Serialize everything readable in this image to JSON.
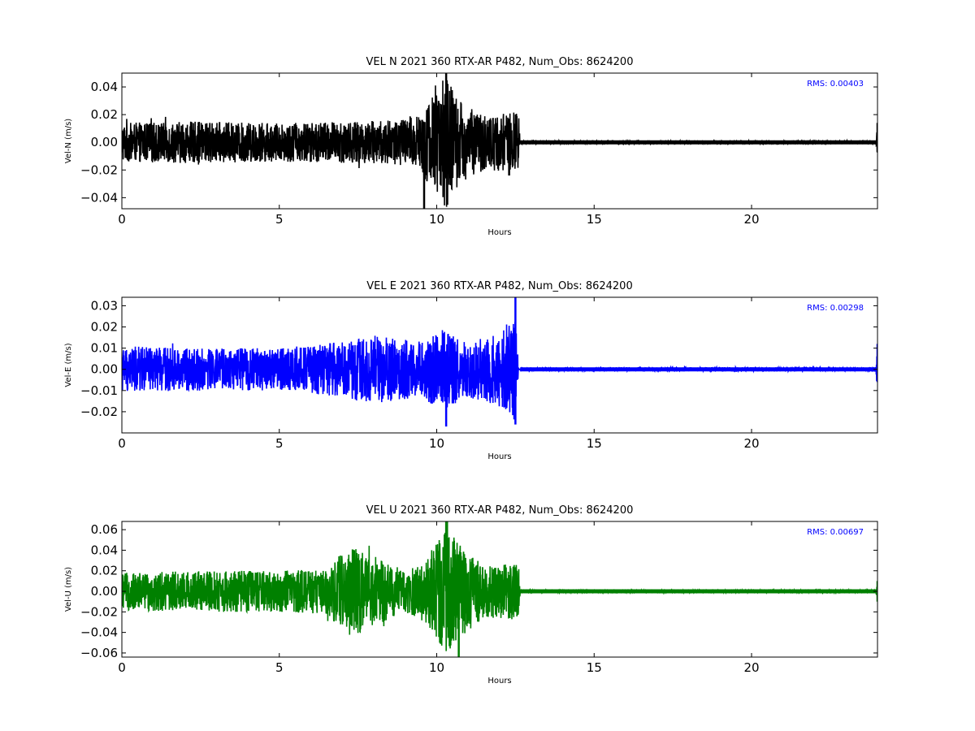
{
  "chart_data": [
    {
      "type": "line",
      "title": "VEL N 2021 360 RTX-AR  P482, Num_Obs: 8624200",
      "xlabel": "Hours",
      "ylabel": "Vel-N (m/s)",
      "xlim": [
        0,
        24
      ],
      "ylim": [
        -0.048,
        0.05
      ],
      "xticks": [
        "0",
        "5",
        "10",
        "15",
        "20"
      ],
      "yticks": [
        "-0.04",
        "-0.02",
        "0.00",
        "0.02",
        "0.04"
      ],
      "color": "#000000",
      "annotation": "RMS:  0.00403",
      "annotation_color": "#0000ff",
      "grid": false,
      "envelope": [
        [
          0,
          0.014
        ],
        [
          2,
          0.015
        ],
        [
          5,
          0.014
        ],
        [
          7,
          0.015
        ],
        [
          8.5,
          0.016
        ],
        [
          9.4,
          0.02
        ],
        [
          9.9,
          0.035
        ],
        [
          10.3,
          0.05
        ],
        [
          10.7,
          0.03
        ],
        [
          11.5,
          0.02
        ],
        [
          12.6,
          0.022
        ],
        [
          12.65,
          0.001
        ],
        [
          23.95,
          0.001
        ],
        [
          24,
          0.012
        ]
      ],
      "spikes": [
        [
          9.6,
          -0.048
        ],
        [
          10.3,
          0.05
        ],
        [
          12.3,
          -0.024
        ],
        [
          24,
          0.014
        ],
        [
          24,
          -0.007
        ]
      ]
    },
    {
      "type": "line",
      "title": "VEL E 2021 360 RTX-AR  P482, Num_Obs: 8624200",
      "xlabel": "Hours",
      "ylabel": "Vel-E (m/s)",
      "xlim": [
        0,
        24
      ],
      "ylim": [
        -0.03,
        0.034
      ],
      "xticks": [
        "0",
        "5",
        "10",
        "15",
        "20"
      ],
      "yticks": [
        "-0.02",
        "-0.01",
        "0.00",
        "0.01",
        "0.02",
        "0.03"
      ],
      "color": "#0000ff",
      "annotation": "RMS:  0.00298",
      "annotation_color": "#0000ff",
      "grid": false,
      "envelope": [
        [
          0,
          0.011
        ],
        [
          2,
          0.01
        ],
        [
          5,
          0.01
        ],
        [
          7,
          0.013
        ],
        [
          8,
          0.016
        ],
        [
          9.5,
          0.013
        ],
        [
          10.2,
          0.02
        ],
        [
          11,
          0.013
        ],
        [
          12,
          0.018
        ],
        [
          12.5,
          0.026
        ],
        [
          12.6,
          0.0005
        ],
        [
          19,
          0.001
        ],
        [
          23.95,
          0.0008
        ],
        [
          24,
          0.012
        ]
      ],
      "spikes": [
        [
          10.3,
          -0.027
        ],
        [
          12.5,
          0.034
        ],
        [
          12.5,
          -0.026
        ],
        [
          24,
          0.012
        ],
        [
          24,
          -0.006
        ]
      ]
    },
    {
      "type": "line",
      "title": "VEL U 2021 360 RTX-AR  P482, Num_Obs: 8624200",
      "xlabel": "Hours",
      "ylabel": "Vel-U (m/s)",
      "xlim": [
        0,
        24
      ],
      "ylim": [
        -0.064,
        0.068
      ],
      "xticks": [
        "0",
        "5",
        "10",
        "15",
        "20"
      ],
      "yticks": [
        "-0.06",
        "-0.04",
        "-0.02",
        "0.00",
        "0.02",
        "0.04",
        "0.06"
      ],
      "color": "#008000",
      "annotation": "RMS:  0.00697",
      "annotation_color": "#0000ff",
      "grid": false,
      "envelope": [
        [
          0,
          0.018
        ],
        [
          2,
          0.02
        ],
        [
          5,
          0.02
        ],
        [
          6.5,
          0.022
        ],
        [
          7.2,
          0.045
        ],
        [
          8,
          0.035
        ],
        [
          9,
          0.02
        ],
        [
          9.6,
          0.03
        ],
        [
          10.3,
          0.06
        ],
        [
          10.8,
          0.045
        ],
        [
          11.5,
          0.025
        ],
        [
          12.6,
          0.028
        ],
        [
          12.65,
          0.001
        ],
        [
          23.95,
          0.001
        ],
        [
          24,
          0.01
        ]
      ],
      "spikes": [
        [
          10.3,
          0.068
        ],
        [
          10.7,
          -0.064
        ],
        [
          24,
          0.01
        ],
        [
          24,
          -0.01
        ]
      ]
    }
  ]
}
